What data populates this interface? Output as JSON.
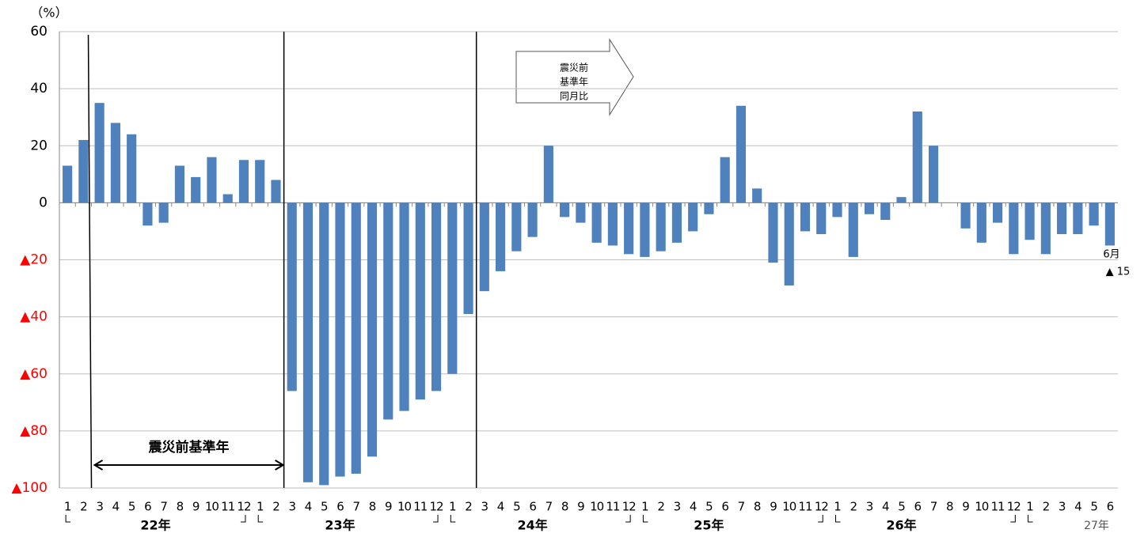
{
  "chart_data": {
    "type": "bar",
    "y_axis_label": "（%）",
    "categories": [
      "1",
      "2",
      "3",
      "4",
      "5",
      "6",
      "7",
      "8",
      "9",
      "10",
      "11",
      "12",
      "1",
      "2",
      "3",
      "4",
      "5",
      "6",
      "7",
      "8",
      "9",
      "10",
      "11",
      "12",
      "1",
      "2",
      "3",
      "4",
      "5",
      "6",
      "7",
      "8",
      "9",
      "10",
      "11",
      "12",
      "1",
      "2",
      "3",
      "4",
      "5",
      "6",
      "7",
      "8",
      "9",
      "10",
      "11",
      "12",
      "1",
      "2",
      "3",
      "4",
      "5",
      "6",
      "7",
      "8",
      "9",
      "10",
      "11",
      "12",
      "1",
      "2",
      "3",
      "4",
      "5",
      "6"
    ],
    "values": [
      13,
      22,
      35,
      28,
      24,
      -8,
      -7,
      13,
      9,
      16,
      3,
      15,
      15,
      8,
      -66,
      -98,
      -99,
      -96,
      -95,
      -89,
      -76,
      -73,
      -69,
      -66,
      -60,
      -39,
      -31,
      -24,
      -17,
      -12,
      20,
      -5,
      -7,
      -14,
      -15,
      -18,
      -19,
      -17,
      -14,
      -10,
      -4,
      16,
      34,
      5,
      -21,
      -29,
      -10,
      -11,
      -5,
      -19,
      -4,
      -6,
      2,
      32,
      20,
      0,
      -9,
      -14,
      -7,
      -18,
      -13,
      -18,
      -11,
      -11,
      -8,
      -15
    ],
    "color": "#4f81bd",
    "years": [
      "22年",
      "23年",
      "24年",
      "25年",
      "26年",
      "27年"
    ],
    "ylim": [
      -100,
      60
    ],
    "yticks": [
      {
        "value": -100,
        "label": "▲100"
      },
      {
        "value": -80,
        "label": "▲80"
      },
      {
        "value": -60,
        "label": "▲60"
      },
      {
        "value": -40,
        "label": "▲40"
      },
      {
        "value": -20,
        "label": "▲20"
      },
      0,
      20,
      40,
      60
    ],
    "negative_tick_color": "#ff0000",
    "grid": true,
    "annotations": {
      "base_year": "震災前基準年",
      "comparison": [
        "震災前",
        "基準年",
        "同月比"
      ],
      "last_month": "6月",
      "last_value": "▲ 15"
    }
  }
}
